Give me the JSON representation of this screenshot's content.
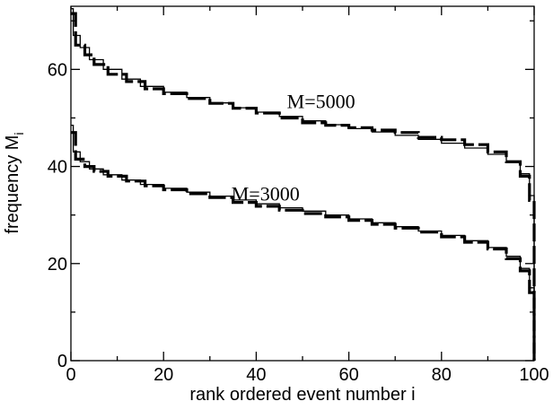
{
  "chart_data": {
    "type": "line",
    "xlabel": "rank ordered event number i",
    "ylabel": "frequency M",
    "ylabel_subscript": "i",
    "xlim": [
      0,
      100
    ],
    "ylim": [
      0,
      73
    ],
    "x_ticks": [
      0,
      20,
      40,
      60,
      80,
      100
    ],
    "y_ticks": [
      0,
      20,
      40,
      60
    ],
    "annotations": [
      {
        "text": "M=5000",
        "x": 54,
        "y": 52
      },
      {
        "text": "M=3000",
        "x": 42,
        "y": 33
      }
    ],
    "series": [
      {
        "style": "thick-dashed-step",
        "points": [
          [
            0,
            71.5
          ],
          [
            1,
            65
          ],
          [
            3,
            63
          ],
          [
            5,
            61
          ],
          [
            8,
            59
          ],
          [
            12,
            57.5
          ],
          [
            16,
            56
          ],
          [
            20,
            55
          ],
          [
            25,
            54
          ],
          [
            30,
            53
          ],
          [
            35,
            52
          ],
          [
            40,
            51
          ],
          [
            45,
            50
          ],
          [
            50,
            49
          ],
          [
            55,
            48.5
          ],
          [
            60,
            48
          ],
          [
            65,
            47.5
          ],
          [
            70,
            47
          ],
          [
            75,
            46
          ],
          [
            80,
            45.5
          ],
          [
            85,
            44.5
          ],
          [
            90,
            43
          ],
          [
            94,
            41
          ],
          [
            97,
            38
          ],
          [
            99,
            33
          ],
          [
            100,
            10
          ],
          [
            100,
            0
          ]
        ]
      },
      {
        "style": "thin-step",
        "points": [
          [
            0,
            72.5
          ],
          [
            0.5,
            67
          ],
          [
            2,
            64.5
          ],
          [
            4,
            62
          ],
          [
            7,
            60
          ],
          [
            11,
            58
          ],
          [
            15,
            56.5
          ],
          [
            20,
            55.3
          ],
          [
            25,
            54.2
          ],
          [
            30,
            53.1
          ],
          [
            35,
            52.1
          ],
          [
            40,
            51.2
          ],
          [
            45,
            50.3
          ],
          [
            50,
            49.4
          ],
          [
            55,
            48.6
          ],
          [
            60,
            47.8
          ],
          [
            65,
            47.1
          ],
          [
            70,
            46.4
          ],
          [
            75,
            45.6
          ],
          [
            80,
            44.8
          ],
          [
            85,
            43.8
          ],
          [
            90,
            42.5
          ],
          [
            94,
            40.8
          ],
          [
            97,
            38.5
          ],
          [
            99,
            34
          ],
          [
            100,
            20
          ],
          [
            100,
            0
          ]
        ]
      },
      {
        "style": "thick-dashed-step",
        "points": [
          [
            0,
            47
          ],
          [
            1,
            41.5
          ],
          [
            3,
            40
          ],
          [
            5,
            39
          ],
          [
            8,
            38
          ],
          [
            12,
            37
          ],
          [
            16,
            36
          ],
          [
            20,
            35.2
          ],
          [
            25,
            34.4
          ],
          [
            30,
            33.6
          ],
          [
            35,
            32.6
          ],
          [
            40,
            31.8
          ],
          [
            45,
            31
          ],
          [
            50,
            30.3
          ],
          [
            55,
            29.6
          ],
          [
            60,
            28.9
          ],
          [
            65,
            28.1
          ],
          [
            70,
            27.3
          ],
          [
            75,
            26.5
          ],
          [
            80,
            25.5
          ],
          [
            85,
            24.4
          ],
          [
            90,
            23
          ],
          [
            94,
            21
          ],
          [
            97,
            18.5
          ],
          [
            99,
            14
          ],
          [
            100,
            5
          ],
          [
            100,
            0
          ]
        ]
      },
      {
        "style": "thin-step",
        "points": [
          [
            0,
            48.5
          ],
          [
            0.5,
            43
          ],
          [
            2,
            41
          ],
          [
            4,
            39.5
          ],
          [
            7,
            38.3
          ],
          [
            11,
            37.2
          ],
          [
            15,
            36.3
          ],
          [
            20,
            35.5
          ],
          [
            25,
            34.7
          ],
          [
            30,
            33.9
          ],
          [
            35,
            33.1
          ],
          [
            40,
            32.3
          ],
          [
            45,
            31.5
          ],
          [
            50,
            30.8
          ],
          [
            55,
            30
          ],
          [
            60,
            29.2
          ],
          [
            65,
            28.4
          ],
          [
            70,
            27.6
          ],
          [
            75,
            26.7
          ],
          [
            80,
            25.8
          ],
          [
            85,
            24.7
          ],
          [
            90,
            23.3
          ],
          [
            94,
            21.5
          ],
          [
            97,
            19
          ],
          [
            99,
            15
          ],
          [
            100,
            7
          ],
          [
            100,
            0
          ]
        ]
      }
    ]
  }
}
